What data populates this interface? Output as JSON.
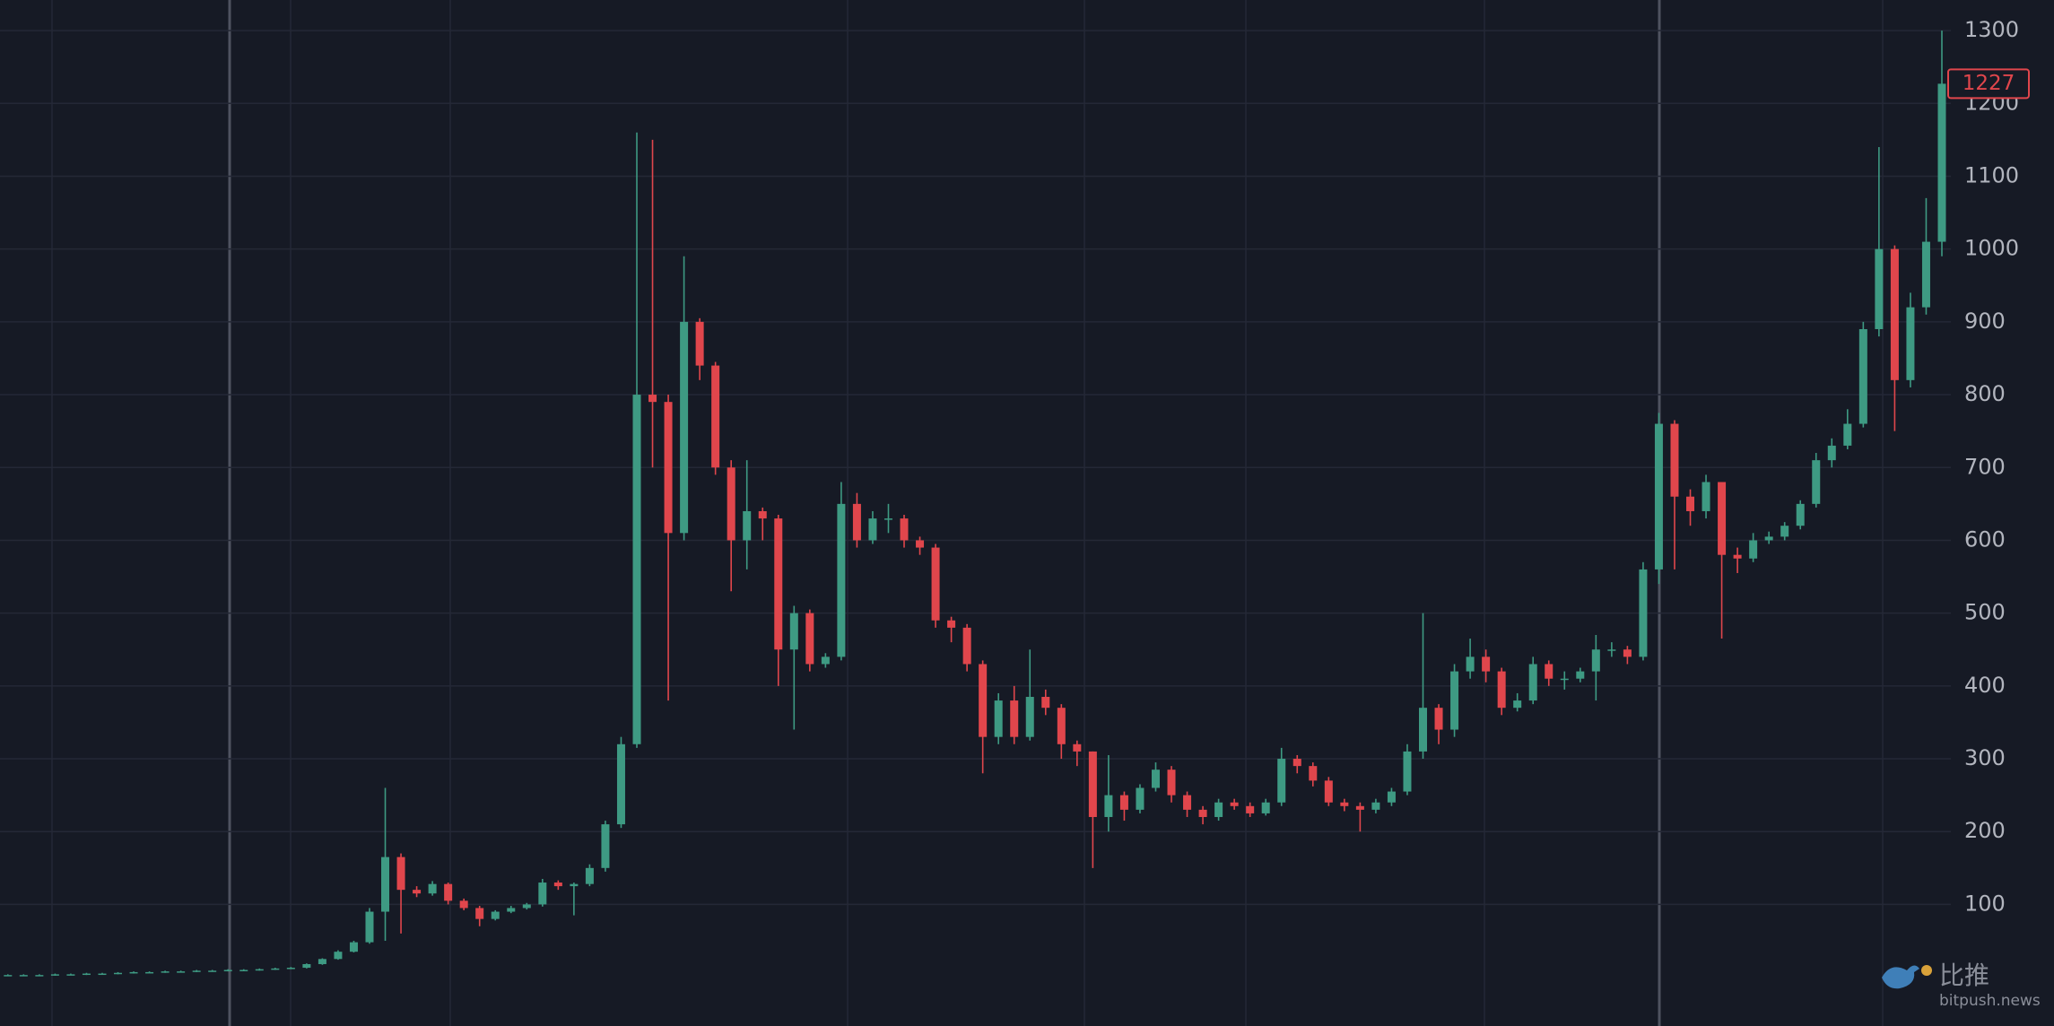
{
  "chart_data": {
    "type": "candlestick",
    "open": [
      3,
      3,
      3,
      3,
      4,
      4,
      5,
      5,
      6,
      7,
      7,
      8,
      8,
      9,
      9,
      10,
      10,
      11,
      12,
      13,
      18,
      25,
      35,
      48,
      90,
      165,
      120,
      115,
      128,
      105,
      95,
      80,
      90,
      95,
      100,
      130,
      125,
      128,
      150,
      210,
      320,
      800,
      790,
      610,
      900,
      840,
      700,
      600,
      640,
      630,
      450,
      500,
      430,
      440,
      650,
      600,
      630,
      630,
      600,
      590,
      490,
      480,
      430,
      330,
      380,
      330,
      385,
      370,
      320,
      310,
      220,
      250,
      230,
      260,
      285,
      250,
      230,
      220,
      240,
      235,
      225,
      240,
      300,
      290,
      270,
      240,
      235,
      230,
      240,
      255,
      310,
      370,
      340,
      420,
      440,
      420,
      370,
      380,
      430,
      410,
      410,
      420,
      450,
      450,
      440,
      560,
      760,
      660,
      640,
      680,
      580,
      575,
      600,
      605,
      620,
      650,
      710,
      730,
      760,
      890,
      1000,
      820,
      920,
      1010
    ],
    "high": [
      4,
      4,
      4,
      5,
      5,
      6,
      6,
      7,
      8,
      8,
      9,
      9,
      10,
      10,
      11,
      11,
      12,
      13,
      14,
      19,
      26,
      37,
      50,
      95,
      260,
      170,
      125,
      132,
      130,
      108,
      98,
      92,
      98,
      102,
      135,
      133,
      130,
      155,
      215,
      330,
      1160,
      1150,
      800,
      990,
      905,
      845,
      710,
      710,
      645,
      635,
      510,
      505,
      445,
      680,
      665,
      640,
      650,
      635,
      605,
      595,
      495,
      485,
      435,
      390,
      400,
      450,
      395,
      375,
      325,
      310,
      305,
      255,
      265,
      295,
      290,
      255,
      235,
      245,
      245,
      240,
      245,
      315,
      305,
      295,
      275,
      245,
      240,
      245,
      260,
      320,
      500,
      375,
      430,
      465,
      450,
      425,
      390,
      440,
      435,
      420,
      425,
      470,
      460,
      455,
      570,
      775,
      765,
      670,
      690,
      680,
      590,
      610,
      612,
      625,
      655,
      720,
      740,
      780,
      900,
      1140,
      1005,
      940,
      1070,
      1300
    ],
    "low": [
      2,
      2,
      2,
      2,
      3,
      3,
      4,
      4,
      5,
      6,
      6,
      7,
      7,
      8,
      8,
      9,
      9,
      10,
      11,
      12,
      17,
      24,
      34,
      46,
      50,
      60,
      110,
      112,
      100,
      92,
      70,
      78,
      88,
      93,
      97,
      120,
      85,
      125,
      145,
      205,
      315,
      700,
      380,
      600,
      820,
      690,
      530,
      560,
      600,
      400,
      340,
      420,
      425,
      435,
      590,
      595,
      610,
      590,
      580,
      480,
      460,
      420,
      280,
      320,
      320,
      325,
      360,
      300,
      290,
      150,
      200,
      215,
      225,
      255,
      240,
      220,
      210,
      215,
      230,
      220,
      222,
      235,
      280,
      262,
      235,
      228,
      200,
      225,
      235,
      250,
      300,
      320,
      330,
      410,
      405,
      360,
      365,
      375,
      400,
      395,
      405,
      380,
      440,
      430,
      435,
      540,
      560,
      620,
      630,
      465,
      555,
      570,
      595,
      600,
      615,
      645,
      700,
      725,
      755,
      880,
      750,
      810,
      910,
      990
    ],
    "close": [
      3,
      3,
      3,
      4,
      4,
      5,
      5,
      6,
      7,
      7,
      8,
      8,
      9,
      9,
      10,
      10,
      11,
      12,
      13,
      18,
      25,
      35,
      48,
      90,
      165,
      120,
      115,
      128,
      105,
      95,
      80,
      90,
      95,
      100,
      130,
      125,
      128,
      150,
      210,
      320,
      800,
      790,
      610,
      900,
      840,
      700,
      600,
      640,
      630,
      450,
      500,
      430,
      440,
      650,
      600,
      630,
      630,
      600,
      590,
      490,
      480,
      430,
      330,
      380,
      330,
      385,
      370,
      320,
      310,
      220,
      250,
      230,
      260,
      285,
      250,
      230,
      220,
      240,
      235,
      225,
      240,
      300,
      290,
      270,
      240,
      235,
      230,
      240,
      255,
      310,
      370,
      340,
      420,
      440,
      420,
      370,
      380,
      430,
      410,
      410,
      420,
      450,
      450,
      440,
      560,
      760,
      660,
      640,
      680,
      580,
      575,
      600,
      605,
      620,
      650,
      710,
      730,
      760,
      890,
      1000,
      820,
      920,
      1010,
      1227
    ],
    "up_color": "#3e9a83",
    "down_color": "#e0464c",
    "ylim": [
      -67,
      1342
    ],
    "yticks": [
      100,
      200,
      300,
      400,
      500,
      600,
      700,
      800,
      900,
      1000,
      1100,
      1200,
      1300
    ],
    "grid": true,
    "last_price": 1227
  },
  "watermark": {
    "name": "比推",
    "site": "bitpush.news"
  }
}
